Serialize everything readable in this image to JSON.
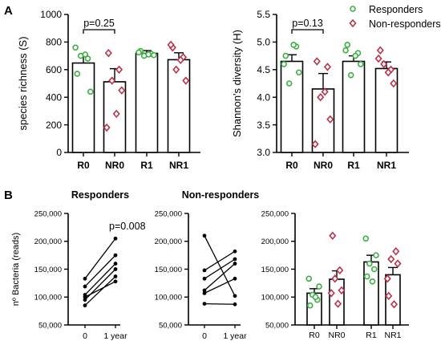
{
  "panel_labels": {
    "a": "A",
    "b": "B"
  },
  "colors": {
    "responder": "#3CB043",
    "nonresponder": "#B8334A",
    "bar_fill": "#ffffff",
    "bar_stroke": "#000000"
  },
  "legend": {
    "responders": "Responders",
    "nonresponders": "Non-responders"
  },
  "chart_data": [
    {
      "id": "richness",
      "type": "bar",
      "ylabel": "species richness (S)",
      "ylim": [
        0,
        1000
      ],
      "yticks": [
        0,
        200,
        400,
        600,
        800,
        1000
      ],
      "ytick_labels": [
        "0",
        "200",
        "400",
        "600",
        "800",
        "1000"
      ],
      "categories": [
        "R0",
        "NR0",
        "R1",
        "NR1"
      ],
      "values": [
        648,
        512,
        718,
        672
      ],
      "errors": [
        60,
        95,
        20,
        50
      ],
      "points": [
        [
          570,
          680,
          700,
          440,
          760,
          710
        ],
        [
          720,
          600,
          520,
          450,
          180,
          280
        ],
        [
          735,
          715,
          700,
          705,
          725,
          710
        ],
        [
          760,
          690,
          600,
          520,
          780,
          670
        ]
      ],
      "annotation": {
        "text": "p=0.25",
        "between": [
          0,
          1
        ]
      }
    },
    {
      "id": "shannon",
      "type": "bar",
      "ylabel": "Shannon's diversity (H)",
      "ylim": [
        3.0,
        5.5
      ],
      "yticks": [
        3.0,
        3.5,
        4.0,
        4.5,
        5.0,
        5.5
      ],
      "ytick_labels": [
        "3.0",
        "3.5",
        "4.0",
        "4.5",
        "5.0",
        "5.5"
      ],
      "categories": [
        "R0",
        "NR0",
        "R1",
        "NR1"
      ],
      "values": [
        4.65,
        4.15,
        4.65,
        4.52
      ],
      "errors": [
        0.12,
        0.28,
        0.1,
        0.12
      ],
      "points": [
        [
          4.75,
          4.92,
          4.25,
          4.45,
          4.6,
          4.95
        ],
        [
          4.65,
          4.55,
          4.0,
          3.6,
          3.15,
          4.1
        ],
        [
          4.95,
          4.8,
          4.4,
          4.6,
          4.85,
          4.75
        ],
        [
          4.85,
          4.5,
          4.6,
          4.25,
          4.7,
          4.45
        ]
      ],
      "annotation": {
        "text": "p=0.13",
        "between": [
          0,
          1
        ]
      }
    },
    {
      "id": "responders_lines",
      "type": "line",
      "title": "Responders",
      "ylabel": "nº Bacteria (reads)",
      "ylim": [
        50000,
        250000
      ],
      "yticks": [
        50000,
        100000,
        150000,
        200000,
        250000
      ],
      "ytick_labels": [
        "50,000",
        "100,000",
        "150,000",
        "200,000",
        "250,000"
      ],
      "x_labels": [
        "0",
        "1 year"
      ],
      "series": [
        {
          "values": [
            85000,
            137000
          ]
        },
        {
          "values": [
            95000,
            150000
          ]
        },
        {
          "values": [
            104000,
            160000
          ]
        },
        {
          "values": [
            119000,
            175000
          ]
        },
        {
          "values": [
            133000,
            205000
          ]
        },
        {
          "values": [
            100000,
            128000
          ]
        }
      ],
      "annotation": {
        "text": "p=0.008"
      }
    },
    {
      "id": "nonresponders_lines",
      "type": "line",
      "title": "Non-responders",
      "ylim": [
        50000,
        250000
      ],
      "yticks": [
        50000,
        100000,
        150000,
        200000,
        250000
      ],
      "ytick_labels": [
        "50,000",
        "100,000",
        "150,000",
        "200,000",
        "250,000"
      ],
      "x_labels": [
        "0",
        "1 year"
      ],
      "series": [
        {
          "values": [
            210000,
            102000
          ]
        },
        {
          "values": [
            148000,
            182000
          ]
        },
        {
          "values": [
            133000,
            168000
          ]
        },
        {
          "values": [
            112000,
            160000
          ]
        },
        {
          "values": [
            107000,
            133000
          ]
        },
        {
          "values": [
            88000,
            87000
          ]
        }
      ]
    },
    {
      "id": "bacteria_bars",
      "type": "bar",
      "ylim": [
        50000,
        250000
      ],
      "yticks": [
        50000,
        100000,
        150000,
        200000,
        250000
      ],
      "ytick_labels": [
        "50,000",
        "100,000",
        "150,000",
        "200,000",
        "250,000"
      ],
      "categories": [
        "R0",
        "NR0",
        "R1",
        "NR1"
      ],
      "group_gap_after": 1,
      "values": [
        107000,
        132000,
        163000,
        140000
      ],
      "errors": [
        8000,
        15000,
        12000,
        13000
      ],
      "points": [
        [
          85000,
          95000,
          104000,
          119000,
          133000,
          100000
        ],
        [
          210000,
          148000,
          133000,
          112000,
          107000,
          88000
        ],
        [
          137000,
          150000,
          160000,
          175000,
          205000,
          128000
        ],
        [
          102000,
          182000,
          168000,
          160000,
          133000,
          87000
        ]
      ]
    }
  ]
}
